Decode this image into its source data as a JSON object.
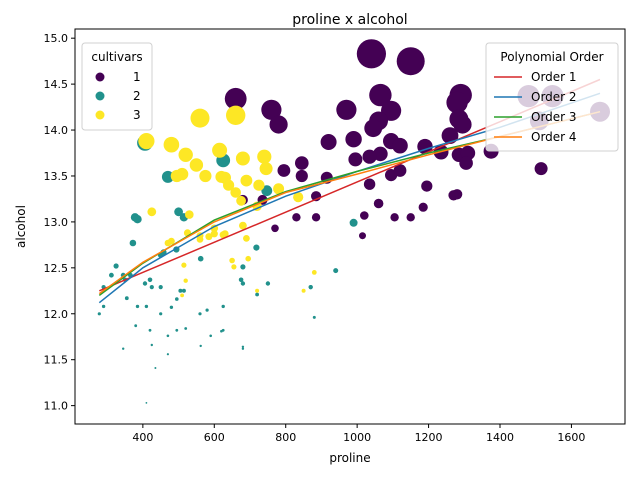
{
  "chart_data": {
    "type": "scatter",
    "title": "proline x alcohol",
    "xlabel": "proline",
    "ylabel": "alcohol",
    "xlim": [
      210,
      1750
    ],
    "ylim": [
      10.8,
      15.1
    ],
    "xticks": [
      400,
      600,
      800,
      1000,
      1200,
      1400,
      1600
    ],
    "yticks": [
      11.0,
      11.5,
      12.0,
      12.5,
      13.0,
      13.5,
      14.0,
      14.5,
      15.0
    ],
    "grid": false,
    "size_encoding": "marker area grows with alcohol",
    "hue_legend": {
      "title": "cultivars",
      "placement": "top-left",
      "entries": [
        {
          "label": "1",
          "color": "#440154"
        },
        {
          "label": "2",
          "color": "#21918c"
        },
        {
          "label": "3",
          "color": "#fde725"
        }
      ]
    },
    "fit_legend": {
      "title": "Polynomial Order",
      "placement": "top-right",
      "entries": [
        {
          "label": "Order 1",
          "color": "#d62728"
        },
        {
          "label": "Order 2",
          "color": "#1f77b4"
        },
        {
          "label": "Order 3",
          "color": "#2ca02c"
        },
        {
          "label": "Order 4",
          "color": "#ff7f0e"
        }
      ]
    },
    "fits": [
      {
        "name": "Order 1",
        "color": "#d62728",
        "x": [
          278,
          1680
        ],
        "y": [
          12.25,
          14.55
        ]
      },
      {
        "name": "Order 2",
        "color": "#1f77b4",
        "x": [
          278,
          400,
          600,
          800,
          1000,
          1200,
          1400,
          1680
        ],
        "y": [
          12.12,
          12.5,
          12.95,
          13.28,
          13.55,
          13.8,
          14.03,
          14.4
        ]
      },
      {
        "name": "Order 3",
        "color": "#2ca02c",
        "x": [
          278,
          400,
          600,
          800,
          1000,
          1200,
          1400,
          1680
        ],
        "y": [
          12.2,
          12.55,
          13.02,
          13.33,
          13.55,
          13.75,
          13.93,
          14.2
        ]
      },
      {
        "name": "Order 4",
        "color": "#ff7f0e",
        "x": [
          278,
          400,
          600,
          800,
          1000,
          1200,
          1400,
          1680
        ],
        "y": [
          12.22,
          12.56,
          13.0,
          13.32,
          13.52,
          13.73,
          13.93,
          14.2
        ]
      }
    ],
    "series": [
      {
        "name": "1",
        "color": "#440154",
        "points": [
          [
            1040,
            14.83
          ],
          [
            1150,
            14.75
          ],
          [
            1065,
            14.38
          ],
          [
            1290,
            14.38
          ],
          [
            660,
            14.34
          ],
          [
            1480,
            14.37
          ],
          [
            1547,
            14.37
          ],
          [
            1680,
            14.2
          ],
          [
            760,
            14.22
          ],
          [
            970,
            14.22
          ],
          [
            1095,
            14.21
          ],
          [
            1280,
            14.3
          ],
          [
            1510,
            14.1
          ],
          [
            1285,
            14.12
          ],
          [
            1060,
            14.1
          ],
          [
            1045,
            14.02
          ],
          [
            780,
            14.06
          ],
          [
            1295,
            14.06
          ],
          [
            1260,
            13.94
          ],
          [
            990,
            13.9
          ],
          [
            920,
            13.87
          ],
          [
            1095,
            13.88
          ],
          [
            1120,
            13.83
          ],
          [
            1190,
            13.82
          ],
          [
            1375,
            13.77
          ],
          [
            1285,
            13.73
          ],
          [
            1235,
            13.76
          ],
          [
            1310,
            13.75
          ],
          [
            1065,
            13.74
          ],
          [
            1035,
            13.71
          ],
          [
            995,
            13.68
          ],
          [
            1305,
            13.64
          ],
          [
            845,
            13.64
          ],
          [
            1095,
            13.51
          ],
          [
            1515,
            13.58
          ],
          [
            795,
            13.56
          ],
          [
            1120,
            13.56
          ],
          [
            845,
            13.5
          ],
          [
            915,
            13.48
          ],
          [
            1195,
            13.39
          ],
          [
            1035,
            13.41
          ],
          [
            1280,
            13.3
          ],
          [
            1270,
            13.29
          ],
          [
            885,
            13.28
          ],
          [
            735,
            13.24
          ],
          [
            1060,
            13.2
          ],
          [
            1185,
            13.16
          ],
          [
            1020,
            13.07
          ],
          [
            1105,
            13.05
          ],
          [
            1150,
            13.05
          ],
          [
            830,
            13.05
          ],
          [
            885,
            13.05
          ],
          [
            770,
            12.93
          ],
          [
            680,
            13.24
          ],
          [
            1015,
            12.85
          ]
        ]
      },
      {
        "name": "2",
        "color": "#21918c",
        "points": [
          [
            406,
            13.86
          ],
          [
            625,
            13.67
          ],
          [
            470,
            13.49
          ],
          [
            747,
            13.34
          ],
          [
            500,
            13.11
          ],
          [
            515,
            13.05
          ],
          [
            378,
            13.05
          ],
          [
            385,
            13.03
          ],
          [
            990,
            12.99
          ],
          [
            718,
            12.72
          ],
          [
            494,
            12.7
          ],
          [
            450,
            12.64
          ],
          [
            372,
            12.77
          ],
          [
            458,
            12.67
          ],
          [
            325,
            12.52
          ],
          [
            562,
            12.6
          ],
          [
            680,
            12.51
          ],
          [
            675,
            12.37
          ],
          [
            940,
            12.47
          ],
          [
            345,
            12.42
          ],
          [
            365,
            12.42
          ],
          [
            312,
            12.42
          ],
          [
            406,
            12.33
          ],
          [
            420,
            12.37
          ],
          [
            425,
            12.29
          ],
          [
            450,
            12.29
          ],
          [
            680,
            12.33
          ],
          [
            870,
            12.29
          ],
          [
            290,
            12.29
          ],
          [
            350,
            12.37
          ],
          [
            625,
            12.08
          ],
          [
            495,
            12.16
          ],
          [
            515,
            12.25
          ],
          [
            580,
            12.04
          ],
          [
            560,
            12.0
          ],
          [
            480,
            12.07
          ],
          [
            385,
            12.08
          ],
          [
            290,
            12.08
          ],
          [
            278,
            12.0
          ],
          [
            355,
            12.17
          ],
          [
            380,
            11.87
          ],
          [
            450,
            12.0
          ],
          [
            410,
            12.08
          ],
          [
            620,
            11.81
          ],
          [
            495,
            11.82
          ],
          [
            520,
            11.84
          ],
          [
            470,
            11.76
          ],
          [
            625,
            11.82
          ],
          [
            680,
            11.64
          ],
          [
            680,
            11.62
          ],
          [
            562,
            11.65
          ],
          [
            345,
            11.62
          ],
          [
            425,
            11.66
          ],
          [
            590,
            11.76
          ],
          [
            470,
            11.56
          ],
          [
            435,
            11.41
          ],
          [
            410,
            11.03
          ],
          [
            880,
            11.96
          ],
          [
            750,
            12.33
          ],
          [
            505,
            12.25
          ],
          [
            870,
            12.29
          ],
          [
            420,
            11.82
          ],
          [
            720,
            12.21
          ]
        ]
      },
      {
        "name": "3",
        "color": "#fde725",
        "points": [
          [
            560,
            14.13
          ],
          [
            660,
            14.16
          ],
          [
            410,
            13.88
          ],
          [
            520,
            13.73
          ],
          [
            480,
            13.84
          ],
          [
            680,
            13.69
          ],
          [
            740,
            13.71
          ],
          [
            615,
            13.78
          ],
          [
            550,
            13.62
          ],
          [
            745,
            13.58
          ],
          [
            510,
            13.52
          ],
          [
            630,
            13.48
          ],
          [
            725,
            13.4
          ],
          [
            575,
            13.5
          ],
          [
            660,
            13.32
          ],
          [
            690,
            13.45
          ],
          [
            620,
            13.49
          ],
          [
            640,
            13.4
          ],
          [
            675,
            13.23
          ],
          [
            780,
            13.36
          ],
          [
            495,
            13.5
          ],
          [
            835,
            13.27
          ],
          [
            720,
            13.17
          ],
          [
            530,
            13.08
          ],
          [
            425,
            13.11
          ],
          [
            600,
            12.87
          ],
          [
            680,
            12.96
          ],
          [
            690,
            12.82
          ],
          [
            625,
            12.86
          ],
          [
            470,
            12.77
          ],
          [
            525,
            12.88
          ],
          [
            560,
            12.81
          ],
          [
            600,
            12.93
          ],
          [
            655,
            12.51
          ],
          [
            650,
            12.58
          ],
          [
            695,
            12.6
          ],
          [
            880,
            12.45
          ],
          [
            520,
            12.36
          ],
          [
            515,
            12.53
          ],
          [
            560,
            12.85
          ],
          [
            480,
            12.79
          ],
          [
            850,
            12.25
          ],
          [
            720,
            12.25
          ],
          [
            585,
            12.84
          ],
          [
            630,
            12.87
          ],
          [
            510,
            12.2
          ]
        ]
      }
    ]
  }
}
